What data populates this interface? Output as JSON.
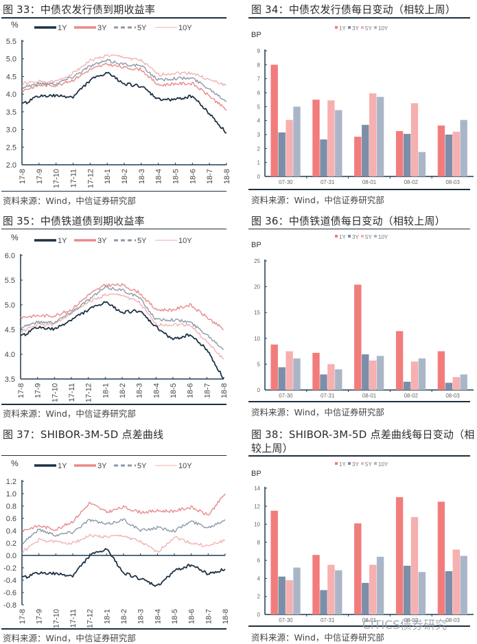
{
  "common": {
    "source": "资料来源：Wind，中信证券研究部",
    "watermark": "CITICS债券研究"
  },
  "colors": {
    "line_1y": "#1c3144",
    "line_3y": "#e88a8a",
    "line_5y": "#8a99a8",
    "line_10y": "#f0a8a8",
    "bar_1y": "#f27c7c",
    "bar_3y": "#7c8ea8",
    "bar_5y": "#f6b0b0",
    "bar_10y": "#aab6c8",
    "axis": "#1d3a50"
  },
  "chart_data": [
    {
      "id": "fig33",
      "type": "line",
      "title": "图 33：中债农发行债到期收益率",
      "ylabel": "%",
      "ylim": [
        2.0,
        5.5
      ],
      "yticks": [
        "2.0",
        "2.5",
        "3.0",
        "3.5",
        "4.0",
        "4.5",
        "5.0",
        "5.5"
      ],
      "x": [
        "17-8",
        "17-9",
        "17-10",
        "17-11",
        "17-12",
        "18-1",
        "18-2",
        "18-3",
        "18-4",
        "18-5",
        "18-6",
        "18-7",
        "18-8"
      ],
      "legend": [
        "1Y",
        "3Y",
        "5Y",
        "10Y"
      ],
      "series": [
        {
          "name": "1Y",
          "values": [
            3.7,
            3.95,
            3.95,
            3.92,
            4.4,
            4.6,
            4.3,
            4.22,
            3.85,
            3.85,
            3.95,
            3.45,
            2.9
          ]
        },
        {
          "name": "3Y",
          "values": [
            4.1,
            4.25,
            4.25,
            4.4,
            4.7,
            4.85,
            4.75,
            4.7,
            4.25,
            4.3,
            4.3,
            3.95,
            3.55
          ]
        },
        {
          "name": "5Y",
          "values": [
            4.2,
            4.3,
            4.3,
            4.5,
            4.8,
            4.95,
            4.85,
            4.8,
            4.4,
            4.45,
            4.45,
            4.15,
            3.8
          ]
        },
        {
          "name": "10Y",
          "values": [
            4.3,
            4.35,
            4.35,
            4.6,
            4.95,
            5.1,
            5.05,
            4.95,
            4.55,
            4.6,
            4.6,
            4.4,
            4.25
          ]
        }
      ]
    },
    {
      "id": "fig34",
      "type": "bar",
      "title": "图 34：中债农发行债每日变动（相较上周）",
      "ylabel": "BP",
      "ylim": [
        0,
        9
      ],
      "yticks": [
        "0",
        "1",
        "2",
        "3",
        "4",
        "5",
        "6",
        "7",
        "8",
        "9"
      ],
      "categories": [
        "07-30",
        "07-31",
        "08-01",
        "08-02",
        "08-03"
      ],
      "legend": [
        "1Y",
        "3Y",
        "5Y",
        "10Y"
      ],
      "series": [
        {
          "name": "1Y",
          "values": [
            8.0,
            5.5,
            2.85,
            3.25,
            3.65
          ]
        },
        {
          "name": "3Y",
          "values": [
            3.15,
            2.65,
            3.7,
            3.05,
            3.0
          ]
        },
        {
          "name": "5Y",
          "values": [
            4.05,
            5.45,
            5.95,
            5.25,
            3.2
          ]
        },
        {
          "name": "10Y",
          "values": [
            5.0,
            4.75,
            5.7,
            1.75,
            4.05
          ]
        }
      ]
    },
    {
      "id": "fig35",
      "type": "line",
      "title": "图 35：中债铁道债到期收益率",
      "ylabel": "%",
      "ylim": [
        3.5,
        6.0
      ],
      "yticks": [
        "3.5",
        "4.0",
        "4.5",
        "5.0",
        "5.5",
        "6.0"
      ],
      "x": [
        "17-8",
        "17-9",
        "17-10",
        "17-11",
        "17-12",
        "18-1",
        "18-2",
        "18-3",
        "18-4",
        "18-5",
        "18-6",
        "18-7",
        "18-8"
      ],
      "legend": [
        "1Y",
        "3Y",
        "5Y",
        "10Y"
      ],
      "series": [
        {
          "name": "1Y",
          "values": [
            4.35,
            4.55,
            4.5,
            4.7,
            4.9,
            5.05,
            4.85,
            4.88,
            4.55,
            4.3,
            4.4,
            4.1,
            3.5
          ]
        },
        {
          "name": "3Y",
          "values": [
            4.75,
            4.78,
            4.78,
            4.9,
            5.2,
            5.4,
            5.4,
            5.25,
            4.9,
            4.9,
            5.0,
            4.75,
            4.5
          ]
        },
        {
          "name": "5Y",
          "values": [
            4.55,
            4.65,
            4.65,
            4.85,
            5.1,
            5.35,
            5.3,
            5.15,
            4.7,
            4.7,
            4.65,
            4.4,
            4.1
          ]
        },
        {
          "name": "10Y",
          "values": [
            4.45,
            4.6,
            4.6,
            4.85,
            5.05,
            5.2,
            5.2,
            5.05,
            4.6,
            4.6,
            4.6,
            4.25,
            3.9
          ]
        }
      ]
    },
    {
      "id": "fig36",
      "type": "bar",
      "title": "图 36：中债铁道债每日变动（相较上周）",
      "ylabel": "BP",
      "ylim": [
        0,
        25
      ],
      "yticks": [
        "0",
        "5",
        "10",
        "15",
        "20",
        "25"
      ],
      "categories": [
        "07-30",
        "07-31",
        "08-01",
        "08-02",
        "08-03"
      ],
      "legend": [
        "1Y",
        "3Y",
        "5Y",
        "10Y"
      ],
      "series": [
        {
          "name": "1Y",
          "values": [
            8.8,
            7.2,
            20.4,
            11.4,
            7.5
          ]
        },
        {
          "name": "3Y",
          "values": [
            4.4,
            3.0,
            6.9,
            1.6,
            1.4
          ]
        },
        {
          "name": "5Y",
          "values": [
            7.5,
            5.0,
            5.7,
            5.5,
            2.5
          ]
        },
        {
          "name": "10Y",
          "values": [
            6.1,
            4.0,
            6.6,
            6.1,
            3.0
          ]
        }
      ]
    },
    {
      "id": "fig37",
      "type": "line",
      "title": "图 37：SHIBOR-3M-5D 点差曲线",
      "ylabel": "%",
      "ylim": [
        -0.8,
        1.2
      ],
      "yticks": [
        "-0.8",
        "-0.6",
        "-0.4",
        "-0.2",
        "0.0",
        "0.2",
        "0.4",
        "0.6",
        "0.8",
        "1.0",
        "1.2"
      ],
      "x": [
        "17-8",
        "17-9",
        "17-10",
        "17-11",
        "17-12",
        "18-1",
        "18-2",
        "18-3",
        "18-4",
        "18-5",
        "18-6",
        "18-7",
        "18-8"
      ],
      "legend": [
        "1Y",
        "3Y",
        "5Y",
        "10Y"
      ],
      "series": [
        {
          "name": "1Y",
          "values": [
            -0.37,
            -0.28,
            -0.3,
            -0.33,
            0.0,
            0.1,
            -0.28,
            -0.38,
            -0.5,
            -0.25,
            -0.15,
            -0.3,
            -0.22
          ]
        },
        {
          "name": "3Y",
          "values": [
            0.4,
            0.48,
            0.42,
            0.55,
            0.85,
            0.7,
            0.78,
            0.7,
            0.72,
            0.72,
            0.78,
            0.65,
            1.0
          ]
        },
        {
          "name": "5Y",
          "values": [
            0.2,
            0.42,
            0.33,
            0.38,
            0.58,
            0.5,
            0.58,
            0.4,
            0.45,
            0.4,
            0.55,
            0.45,
            0.58
          ]
        },
        {
          "name": "10Y",
          "values": [
            0.05,
            0.25,
            0.22,
            0.2,
            0.32,
            0.3,
            0.32,
            0.22,
            0.05,
            0.3,
            0.2,
            0.15,
            0.25
          ]
        }
      ]
    },
    {
      "id": "fig38",
      "type": "bar",
      "title": "图 38：SHIBOR-3M-5D 点差曲线每日变动（相",
      "title_line2": "较上周）",
      "ylabel": "BP",
      "ylim": [
        0,
        14
      ],
      "yticks": [
        "0",
        "2",
        "4",
        "6",
        "8",
        "10",
        "12",
        "14"
      ],
      "categories": [
        "07-30",
        "07-31",
        "08-01",
        "08-02",
        "08-03"
      ],
      "legend": [
        "1Y",
        "3Y",
        "5Y",
        "10Y"
      ],
      "series": [
        {
          "name": "1Y",
          "values": [
            11.5,
            6.6,
            10.1,
            13.0,
            12.5
          ]
        },
        {
          "name": "3Y",
          "values": [
            4.2,
            2.7,
            3.5,
            5.4,
            4.8
          ]
        },
        {
          "name": "5Y",
          "values": [
            3.8,
            5.5,
            5.5,
            10.8,
            7.2
          ]
        },
        {
          "name": "10Y",
          "values": [
            5.2,
            4.9,
            6.4,
            4.7,
            6.5
          ]
        }
      ]
    }
  ]
}
